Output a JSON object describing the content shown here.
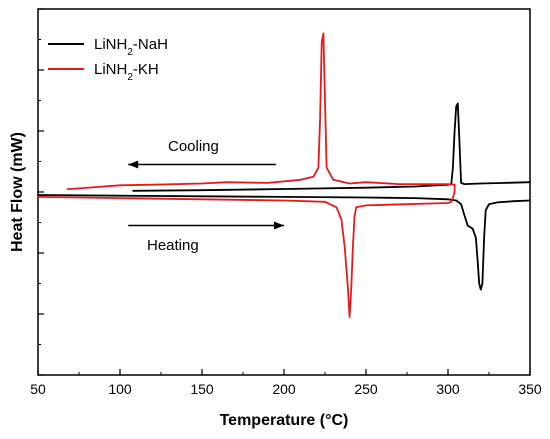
{
  "chart_data": {
    "type": "line",
    "title": "",
    "xlabel": "Temperature (°C)",
    "ylabel": "Heat Flow (mW)",
    "xlim": [
      50,
      350
    ],
    "ylim": [
      -3,
      3
    ],
    "x_ticks": [
      50,
      100,
      150,
      200,
      250,
      300,
      350
    ],
    "x_tick_labels": [
      "50",
      "100",
      "150",
      "200",
      "250",
      "300",
      "350"
    ],
    "y_ticks": [
      -3,
      -2,
      -1,
      0,
      1,
      2,
      3
    ],
    "y_tick_labels_visible": false,
    "grid": false,
    "legend": {
      "placement": "top-left",
      "entries": [
        {
          "label_prefix": "LiNH",
          "label_sub": "2",
          "label_suffix": "-NaH",
          "color": "#000000"
        },
        {
          "label_prefix": "LiNH",
          "label_sub": "2",
          "label_suffix": "-KH",
          "color": "#e8191c"
        }
      ]
    },
    "annotations": {
      "cooling_label": "Cooling",
      "heating_label": "Heating"
    },
    "arrows": [
      {
        "label": "Cooling",
        "direction": "left",
        "x_from": 195,
        "x_to": 105,
        "y": 0.45
      },
      {
        "label": "Heating",
        "direction": "right",
        "x_from": 105,
        "x_to": 200,
        "y": -0.55
      }
    ],
    "series": [
      {
        "name": "LiNH2-NaH",
        "color": "#000000",
        "segments": [
          [
            [
              50,
              -0.05
            ],
            [
              100,
              -0.06
            ],
            [
              150,
              -0.07
            ],
            [
              200,
              -0.08
            ],
            [
              250,
              -0.09
            ],
            [
              280,
              -0.1
            ],
            [
              300,
              -0.12
            ],
            [
              305,
              -0.14
            ]
          ],
          [
            [
              305,
              -0.14
            ],
            [
              308,
              -0.2
            ],
            [
              310,
              -0.38
            ],
            [
              312,
              -0.55
            ],
            [
              315,
              -0.6
            ],
            [
              317,
              -0.75
            ],
            [
              318,
              -1.1
            ],
            [
              319,
              -1.5
            ],
            [
              320,
              -1.6
            ],
            [
              321,
              -1.5
            ],
            [
              322,
              -0.75
            ],
            [
              323,
              -0.3
            ],
            [
              325,
              -0.2
            ],
            [
              330,
              -0.17
            ],
            [
              340,
              -0.15
            ],
            [
              350,
              -0.14
            ]
          ],
          [
            [
              108,
              0.02
            ],
            [
              150,
              0.03
            ],
            [
              200,
              0.05
            ],
            [
              250,
              0.07
            ],
            [
              280,
              0.09
            ],
            [
              300,
              0.12
            ],
            [
              302,
              0.13
            ],
            [
              303,
              0.4
            ],
            [
              304,
              1.0
            ],
            [
              305,
              1.4
            ],
            [
              306,
              1.45
            ],
            [
              307,
              0.8
            ],
            [
              308,
              0.15
            ],
            [
              310,
              0.13
            ],
            [
              320,
              0.14
            ],
            [
              335,
              0.15
            ],
            [
              350,
              0.16
            ]
          ]
        ]
      },
      {
        "name": "LiNH2-KH",
        "color": "#e8191c",
        "segments": [
          [
            [
              50,
              -0.08
            ],
            [
              100,
              -0.1
            ],
            [
              150,
              -0.12
            ],
            [
              200,
              -0.14
            ],
            [
              225,
              -0.16
            ],
            [
              232,
              -0.25
            ],
            [
              235,
              -0.45
            ],
            [
              237,
              -0.9
            ],
            [
              239,
              -1.6
            ],
            [
              240,
              -2.05
            ],
            [
              241,
              -1.6
            ],
            [
              242,
              -0.9
            ],
            [
              243,
              -0.4
            ],
            [
              244,
              -0.25
            ],
            [
              250,
              -0.22
            ],
            [
              275,
              -0.2
            ],
            [
              300,
              -0.18
            ],
            [
              302,
              -0.16
            ],
            [
              303,
              -0.1
            ]
          ],
          [
            [
              303,
              -0.1
            ],
            [
              304,
              0.0
            ],
            [
              304,
              0.12
            ],
            [
              300,
              0.13
            ],
            [
              270,
              0.13
            ],
            [
              250,
              0.16
            ],
            [
              240,
              0.14
            ],
            [
              230,
              0.2
            ],
            [
              226,
              0.4
            ],
            [
              225,
              1.5
            ],
            [
              224,
              2.6
            ],
            [
              223,
              2.45
            ],
            [
              222,
              1.2
            ],
            [
              221,
              0.4
            ],
            [
              218,
              0.25
            ],
            [
              210,
              0.2
            ],
            [
              190,
              0.15
            ],
            [
              165,
              0.16
            ],
            [
              150,
              0.14
            ],
            [
              120,
              0.12
            ],
            [
              100,
              0.11
            ],
            [
              85,
              0.08
            ],
            [
              70,
              0.05
            ],
            [
              68,
              0.05
            ]
          ]
        ]
      }
    ]
  }
}
